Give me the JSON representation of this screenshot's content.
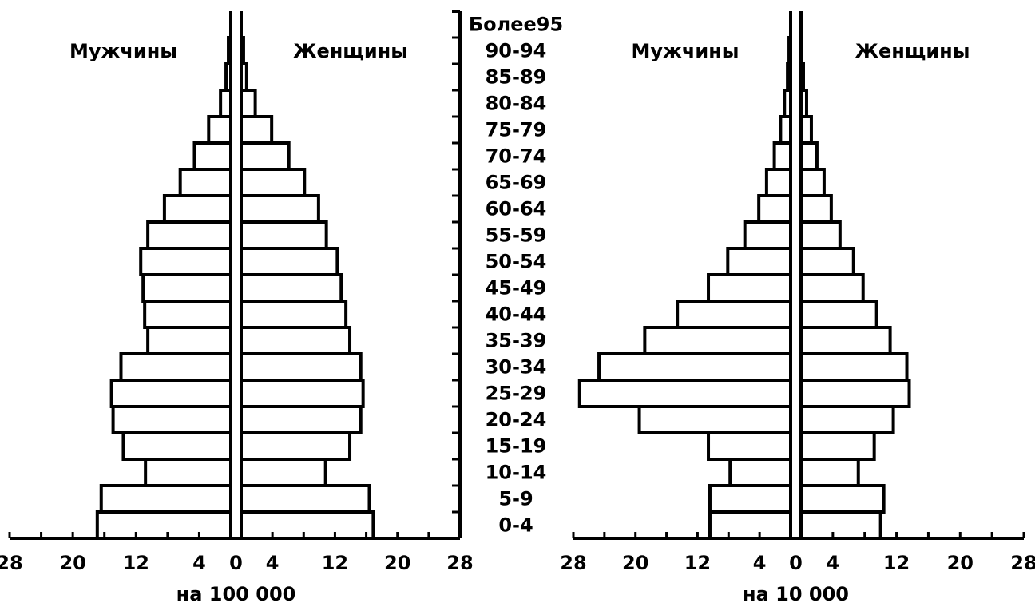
{
  "chart_data": [
    {
      "type": "bar",
      "orientation": "horizontal-pyramid",
      "unit_label": "на 100 000",
      "series": [
        {
          "name": "Мужчины",
          "values": [
            16.9,
            16.4,
            10.8,
            13.6,
            14.9,
            15.1,
            13.9,
            10.5,
            10.9,
            11.1,
            11.4,
            10.5,
            8.4,
            6.4,
            4.6,
            2.8,
            1.3,
            0.6,
            0.3
          ]
        },
        {
          "name": "Женщины",
          "values": [
            16.9,
            16.4,
            10.8,
            13.9,
            15.3,
            15.6,
            15.3,
            13.9,
            13.4,
            12.8,
            12.3,
            10.9,
            9.9,
            8.1,
            6.1,
            3.9,
            1.8,
            0.7,
            0.3
          ]
        }
      ],
      "categories": [
        "0-4",
        "5-9",
        "10-14",
        "15-19",
        "20-24",
        "25-29",
        "30-34",
        "35-39",
        "40-44",
        "45-49",
        "50-54",
        "55-59",
        "60-64",
        "65-69",
        "70-74",
        "75-79",
        "80-84",
        "85-89",
        "90-94"
      ],
      "xticks": [
        "28",
        "20",
        "12",
        "4",
        "0",
        "4",
        "12",
        "20",
        "28"
      ],
      "xlim": [
        0,
        28
      ]
    },
    {
      "type": "bar",
      "orientation": "horizontal-pyramid",
      "unit_label": "на 10 000",
      "series": [
        {
          "name": "Мужчины",
          "values": [
            10.4,
            10.4,
            7.8,
            10.6,
            19.5,
            27.2,
            24.7,
            18.8,
            14.6,
            10.6,
            8.1,
            5.9,
            4.1,
            3.1,
            2.1,
            1.3,
            0.8,
            0.4,
            0.2
          ]
        },
        {
          "name": "Женщины",
          "values": [
            10.0,
            10.4,
            7.2,
            9.2,
            11.6,
            13.6,
            13.3,
            11.2,
            9.5,
            7.8,
            6.6,
            4.9,
            3.8,
            2.9,
            2.0,
            1.3,
            0.7,
            0.3,
            0.1
          ]
        }
      ],
      "categories": [
        "0-4",
        "5-9",
        "10-14",
        "15-19",
        "20-24",
        "25-29",
        "30-34",
        "35-39",
        "40-44",
        "45-49",
        "50-54",
        "55-59",
        "60-64",
        "65-69",
        "70-74",
        "75-79",
        "80-84",
        "85-89",
        "90-94"
      ],
      "xticks": [
        "28",
        "20",
        "12",
        "4",
        "0",
        "4",
        "12",
        "20",
        "28"
      ],
      "xlim": [
        0,
        28
      ]
    }
  ],
  "age_groups": [
    "0-4",
    "5-9",
    "10-14",
    "15-19",
    "20-24",
    "25-29",
    "30-34",
    "35-39",
    "40-44",
    "45-49",
    "50-54",
    "55-59",
    "60-64",
    "65-69",
    "70-74",
    "75-79",
    "80-84",
    "85-89",
    "90-94",
    "Более95"
  ]
}
